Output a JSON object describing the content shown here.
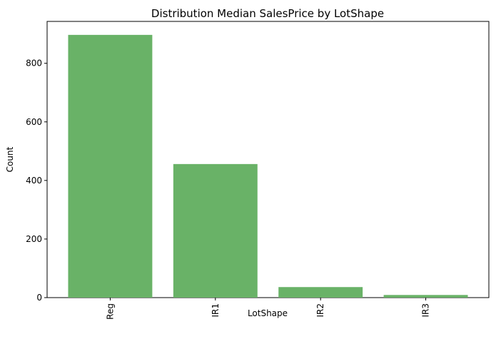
{
  "chart_data": {
    "type": "bar",
    "title": "Distribution Median SalesPrice by LotShape",
    "xlabel": "LotShape",
    "ylabel": "Count",
    "categories": [
      "Reg",
      "IR1",
      "IR2",
      "IR3"
    ],
    "values": [
      897,
      456,
      36,
      9
    ],
    "ylim": [
      0,
      943
    ],
    "yticks": [
      0,
      200,
      400,
      600,
      800
    ],
    "grid": false,
    "bar_color": "#69b267",
    "x_tick_rotation": "vertical"
  }
}
